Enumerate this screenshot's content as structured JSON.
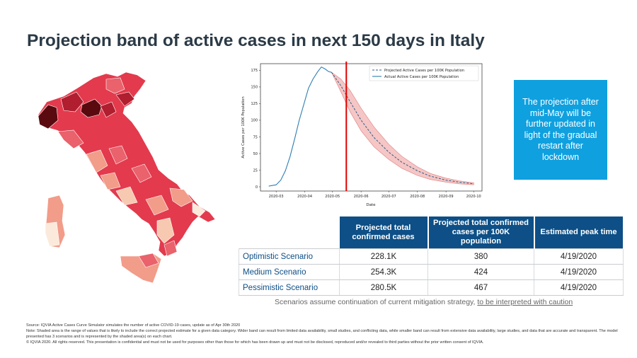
{
  "title": "Projection band of active cases in next 150 days in Italy",
  "colors": {
    "band": "#f2b3b2",
    "band_edge": "#e07b7b",
    "projected": "#2b5d86",
    "actual": "#2f7eb0",
    "vline": "#e00000",
    "callout": "#0fa0df",
    "table_header": "#0d4f86"
  },
  "map": {
    "colors": [
      "#5a0a0f",
      "#b01e2f",
      "#e33a4d",
      "#e9626c",
      "#f29c8a",
      "#f7c9b0",
      "#fbeadb"
    ]
  },
  "chart_data": {
    "type": "line",
    "xlabel": "Date",
    "ylabel": "Active Cases per 100K Population",
    "xticks": [
      "2020-03",
      "2020-04",
      "2020-05",
      "2020-06",
      "2020-07",
      "2020-08",
      "2020-09",
      "2020-10"
    ],
    "yticks": [
      "0",
      "25",
      "50",
      "75",
      "100",
      "125",
      "150",
      "175"
    ],
    "ylim": [
      0,
      185
    ],
    "xlim": [
      "2020-02-13",
      "2020-10-10"
    ],
    "legend": {
      "position": "top-right",
      "entries": [
        "Projected Active Cases per 100K Population",
        "Actual Active Cases per 100K Population"
      ]
    },
    "vline_date": "2020-05-16",
    "series": [
      {
        "name": "Actual Active Cases per 100K Population",
        "style": "solid",
        "x": [
          "2020-02-22",
          "2020-03-01",
          "2020-03-06",
          "2020-03-11",
          "2020-03-16",
          "2020-03-21",
          "2020-03-26",
          "2020-03-31",
          "2020-04-05",
          "2020-04-10",
          "2020-04-15",
          "2020-04-19",
          "2020-04-23",
          "2020-04-27",
          "2020-04-30"
        ],
        "y": [
          1,
          3,
          10,
          24,
          45,
          72,
          100,
          124,
          148,
          162,
          173,
          180,
          177,
          173,
          172
        ]
      },
      {
        "name": "Projected Active Cases per 100K Population",
        "style": "dashed",
        "x": [
          "2020-04-30",
          "2020-05-10",
          "2020-05-20",
          "2020-06-01",
          "2020-06-15",
          "2020-07-01",
          "2020-07-15",
          "2020-08-01",
          "2020-08-15",
          "2020-09-01",
          "2020-09-15",
          "2020-10-01"
        ],
        "y": [
          172,
          152,
          128,
          100,
          74,
          52,
          37,
          24,
          16,
          10,
          7,
          4.5
        ]
      }
    ],
    "band": {
      "x": [
        "2020-04-30",
        "2020-05-10",
        "2020-05-20",
        "2020-06-01",
        "2020-06-15",
        "2020-07-01",
        "2020-07-15",
        "2020-08-01",
        "2020-08-15",
        "2020-09-01",
        "2020-09-15",
        "2020-10-01"
      ],
      "upper": [
        172,
        162,
        145,
        118,
        90,
        64,
        46,
        30,
        20,
        13,
        9,
        6
      ],
      "lower": [
        172,
        143,
        113,
        84,
        60,
        41,
        28,
        17,
        11,
        7,
        4.5,
        3
      ]
    }
  },
  "callout": "The projection after mid-May will be further updated in light of the gradual restart after lockdown",
  "table": {
    "headers": [
      "Projected total confirmed cases",
      "Projected total confirmed cases per 100K population",
      "Estimated peak time"
    ],
    "rows": [
      {
        "label": "Optimistic Scenario",
        "total": "228.1K",
        "per100k": "380",
        "peak": "4/19/2020"
      },
      {
        "label": "Medium Scenario",
        "total": "254.3K",
        "per100k": "424",
        "peak": "4/19/2020"
      },
      {
        "label": "Pessimistic Scenario",
        "total": "280.5K",
        "per100k": "467",
        "peak": "4/19/2020"
      }
    ]
  },
  "note": {
    "text": "Scenarios assume continuation of current mitigation strategy, ",
    "link": "to be interpreted with caution"
  },
  "footer": [
    "Source: IQVIA Active Cases Curve Simulator simulates the number of active COVID-19 cases, update as of Apr 30th 2020",
    "Note: Shaded area is the range of values that is likely to include the correct projected estimate for a given data category. Wider band can result from limited data availability, small studies, and conflicting data, while smaller band can result from extensive data availability, large studies, and data that are accurate and transparent. The model presented has 3 scenarios and is represented by the shaded area(s) on each chart.",
    "© IQVIA 2020. All rights reserved. This presentation is confidential and must not be used for purposes other than those for which has been drawn up and must not be disclosed, reproduced and/or revealed to third parties without the prior written consent of IQVIA."
  ]
}
